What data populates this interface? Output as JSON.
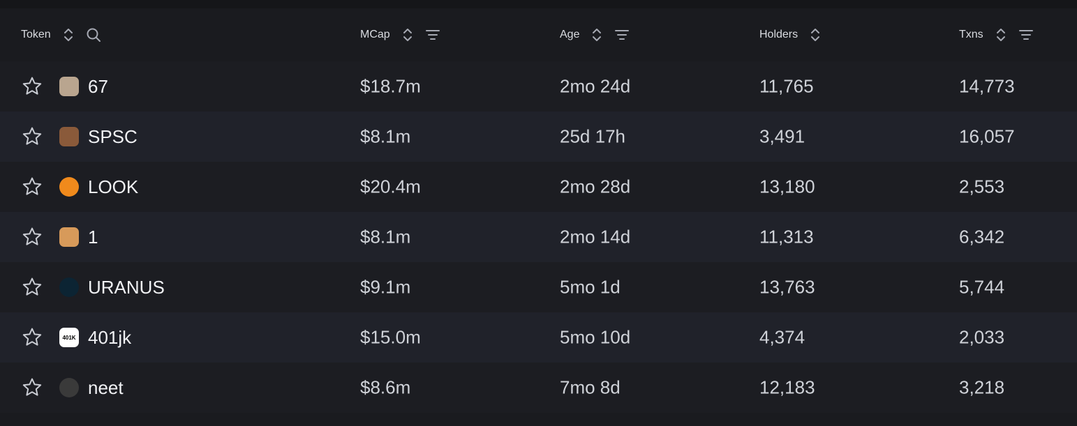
{
  "header": {
    "token": "Token",
    "mcap": "MCap",
    "age": "Age",
    "holders": "Holders",
    "txns": "Txns"
  },
  "rows": [
    {
      "name": "67",
      "mcap": "$18.7m",
      "age": "2mo 24d",
      "holders": "11,765",
      "txns": "14,773",
      "avatar_color": "#b9a58f",
      "avatar_label": ""
    },
    {
      "name": "SPSC",
      "mcap": "$8.1m",
      "age": "25d 17h",
      "holders": "3,491",
      "txns": "16,057",
      "avatar_color": "#8a5a3a",
      "avatar_label": ""
    },
    {
      "name": "LOOK",
      "mcap": "$20.4m",
      "age": "2mo 28d",
      "holders": "13,180",
      "txns": "2,553",
      "avatar_color": "#f08a1c",
      "avatar_label": ""
    },
    {
      "name": "1",
      "mcap": "$8.1m",
      "age": "2mo 14d",
      "holders": "11,313",
      "txns": "6,342",
      "avatar_color": "#d79a5a",
      "avatar_label": ""
    },
    {
      "name": "URANUS",
      "mcap": "$9.1m",
      "age": "5mo 1d",
      "holders": "13,763",
      "txns": "5,744",
      "avatar_color": "#0c2433",
      "avatar_label": ""
    },
    {
      "name": "401jk",
      "mcap": "$15.0m",
      "age": "5mo 10d",
      "holders": "4,374",
      "txns": "2,033",
      "avatar_color": "#ffffff",
      "avatar_label": "401K"
    },
    {
      "name": "neet",
      "mcap": "$8.6m",
      "age": "7mo 8d",
      "holders": "12,183",
      "txns": "3,218",
      "avatar_color": "#3a3a3a",
      "avatar_label": ""
    }
  ],
  "colors": {
    "background": "#1a1b1f",
    "row_alt": "#20222a",
    "header_text": "#a6a9b3",
    "cell_text": "#cfd2d8"
  },
  "icons": {
    "sort": "sort-updown-icon",
    "search": "search-icon",
    "filter": "filter-icon",
    "star": "star-icon"
  }
}
